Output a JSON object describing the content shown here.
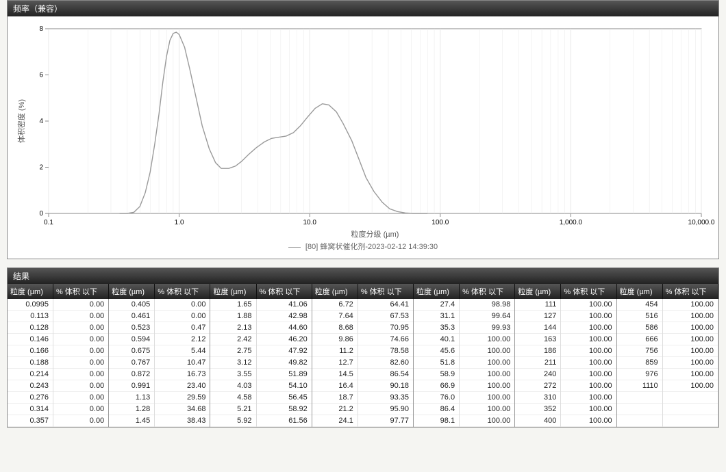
{
  "chart_panel": {
    "title": "频率（兼容）",
    "xlabel": "粒度分级 (µm)",
    "ylabel": "体积密度 (%)",
    "legend_text": "[80] 蜂窝状催化剂-2023-02-12 14:39:30",
    "chart": {
      "type": "line",
      "x_scale": "log",
      "xlim": [
        0.1,
        10000
      ],
      "x_ticks": [
        0.1,
        1.0,
        10.0,
        100.0,
        1000.0,
        10000.0
      ],
      "x_tick_labels": [
        "0.1",
        "1.0",
        "10.0",
        "100.0",
        "1,000.0",
        "10,000.0"
      ],
      "ylim": [
        0,
        8
      ],
      "y_ticks": [
        0,
        2,
        4,
        6,
        8
      ],
      "line_color": "#9a9a9a",
      "line_width": 1.4,
      "background_color": "#ffffff",
      "grid_color": "#e8e8e8",
      "axis_color": "#888888",
      "points": [
        [
          0.35,
          0.0
        ],
        [
          0.4,
          0.0
        ],
        [
          0.45,
          0.05
        ],
        [
          0.5,
          0.3
        ],
        [
          0.55,
          0.9
        ],
        [
          0.6,
          1.8
        ],
        [
          0.65,
          3.0
        ],
        [
          0.7,
          4.3
        ],
        [
          0.75,
          5.7
        ],
        [
          0.8,
          6.8
        ],
        [
          0.85,
          7.5
        ],
        [
          0.9,
          7.8
        ],
        [
          0.95,
          7.85
        ],
        [
          1.0,
          7.75
        ],
        [
          1.1,
          7.2
        ],
        [
          1.2,
          6.3
        ],
        [
          1.35,
          5.0
        ],
        [
          1.5,
          3.8
        ],
        [
          1.7,
          2.8
        ],
        [
          1.9,
          2.2
        ],
        [
          2.1,
          1.95
        ],
        [
          2.4,
          1.95
        ],
        [
          2.7,
          2.05
        ],
        [
          3.0,
          2.25
        ],
        [
          3.4,
          2.55
        ],
        [
          3.9,
          2.85
        ],
        [
          4.5,
          3.1
        ],
        [
          5.1,
          3.25
        ],
        [
          5.8,
          3.3
        ],
        [
          6.6,
          3.35
        ],
        [
          7.5,
          3.5
        ],
        [
          8.5,
          3.8
        ],
        [
          9.7,
          4.2
        ],
        [
          11.0,
          4.55
        ],
        [
          12.5,
          4.75
        ],
        [
          14.0,
          4.7
        ],
        [
          16.0,
          4.4
        ],
        [
          18.0,
          3.9
        ],
        [
          21.0,
          3.15
        ],
        [
          24.0,
          2.3
        ],
        [
          27.0,
          1.55
        ],
        [
          31.0,
          0.95
        ],
        [
          36.0,
          0.48
        ],
        [
          41.0,
          0.2
        ],
        [
          47.0,
          0.08
        ],
        [
          54.0,
          0.02
        ],
        [
          62.0,
          0.0
        ],
        [
          80.0,
          0.0
        ]
      ]
    }
  },
  "results_panel": {
    "title": "结果",
    "col_pair_header": {
      "size": "粒度 (µm)",
      "cum": "% 体积 以下"
    },
    "groups": [
      [
        [
          "0.0995",
          "0.00"
        ],
        [
          "0.113",
          "0.00"
        ],
        [
          "0.128",
          "0.00"
        ],
        [
          "0.146",
          "0.00"
        ],
        [
          "0.166",
          "0.00"
        ],
        [
          "0.188",
          "0.00"
        ],
        [
          "0.214",
          "0.00"
        ],
        [
          "0.243",
          "0.00"
        ],
        [
          "0.276",
          "0.00"
        ],
        [
          "0.314",
          "0.00"
        ],
        [
          "0.357",
          "0.00"
        ]
      ],
      [
        [
          "0.405",
          "0.00"
        ],
        [
          "0.461",
          "0.00"
        ],
        [
          "0.523",
          "0.47"
        ],
        [
          "0.594",
          "2.12"
        ],
        [
          "0.675",
          "5.44"
        ],
        [
          "0.767",
          "10.47"
        ],
        [
          "0.872",
          "16.73"
        ],
        [
          "0.991",
          "23.40"
        ],
        [
          "1.13",
          "29.59"
        ],
        [
          "1.28",
          "34.68"
        ],
        [
          "1.45",
          "38.43"
        ]
      ],
      [
        [
          "1.65",
          "41.06"
        ],
        [
          "1.88",
          "42.98"
        ],
        [
          "2.13",
          "44.60"
        ],
        [
          "2.42",
          "46.20"
        ],
        [
          "2.75",
          "47.92"
        ],
        [
          "3.12",
          "49.82"
        ],
        [
          "3.55",
          "51.89"
        ],
        [
          "4.03",
          "54.10"
        ],
        [
          "4.58",
          "56.45"
        ],
        [
          "5.21",
          "58.92"
        ],
        [
          "5.92",
          "61.56"
        ]
      ],
      [
        [
          "6.72",
          "64.41"
        ],
        [
          "7.64",
          "67.53"
        ],
        [
          "8.68",
          "70.95"
        ],
        [
          "9.86",
          "74.66"
        ],
        [
          "11.2",
          "78.58"
        ],
        [
          "12.7",
          "82.60"
        ],
        [
          "14.5",
          "86.54"
        ],
        [
          "16.4",
          "90.18"
        ],
        [
          "18.7",
          "93.35"
        ],
        [
          "21.2",
          "95.90"
        ],
        [
          "24.1",
          "97.77"
        ]
      ],
      [
        [
          "27.4",
          "98.98"
        ],
        [
          "31.1",
          "99.64"
        ],
        [
          "35.3",
          "99.93"
        ],
        [
          "40.1",
          "100.00"
        ],
        [
          "45.6",
          "100.00"
        ],
        [
          "51.8",
          "100.00"
        ],
        [
          "58.9",
          "100.00"
        ],
        [
          "66.9",
          "100.00"
        ],
        [
          "76.0",
          "100.00"
        ],
        [
          "86.4",
          "100.00"
        ],
        [
          "98.1",
          "100.00"
        ]
      ],
      [
        [
          "111",
          "100.00"
        ],
        [
          "127",
          "100.00"
        ],
        [
          "144",
          "100.00"
        ],
        [
          "163",
          "100.00"
        ],
        [
          "186",
          "100.00"
        ],
        [
          "211",
          "100.00"
        ],
        [
          "240",
          "100.00"
        ],
        [
          "272",
          "100.00"
        ],
        [
          "310",
          "100.00"
        ],
        [
          "352",
          "100.00"
        ],
        [
          "400",
          "100.00"
        ]
      ],
      [
        [
          "454",
          "100.00"
        ],
        [
          "516",
          "100.00"
        ],
        [
          "586",
          "100.00"
        ],
        [
          "666",
          "100.00"
        ],
        [
          "756",
          "100.00"
        ],
        [
          "859",
          "100.00"
        ],
        [
          "976",
          "100.00"
        ],
        [
          "1110",
          "100.00"
        ],
        [
          "",
          ""
        ],
        [
          "",
          ""
        ],
        [
          "",
          ""
        ]
      ]
    ]
  }
}
